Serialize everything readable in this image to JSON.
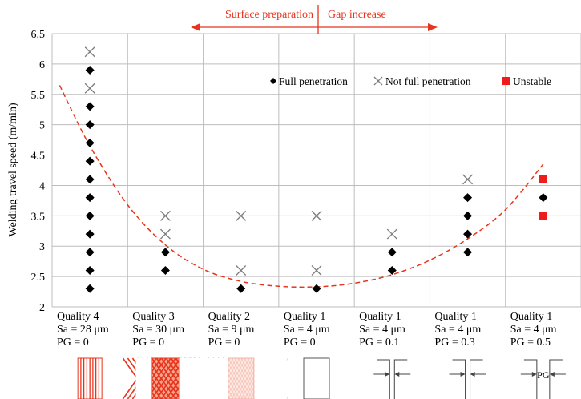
{
  "chart_data": {
    "type": "scatter",
    "ylabel": "Welding travel speed (m/min)",
    "ylim": [
      2,
      6.5
    ],
    "yticks": [
      "2",
      "2.5",
      "3",
      "3.5",
      "4",
      "4.5",
      "5",
      "5.5",
      "6",
      "6.5"
    ],
    "grid": true,
    "legend_position": "top-right",
    "categories": [
      {
        "line1": "Quality 4",
        "line2": "Sa = 28 μm",
        "line3": "PG = 0"
      },
      {
        "line1": "Quality 3",
        "line2": "Sa = 30 μm",
        "line3": "PG = 0"
      },
      {
        "line1": "Quality 2",
        "line2": "Sa = 9 μm",
        "line3": "PG = 0"
      },
      {
        "line1": "Quality 1",
        "line2": "Sa = 4 μm",
        "line3": "PG = 0"
      },
      {
        "line1": "Quality 1",
        "line2": "Sa = 4 μm",
        "line3": "PG = 0.1"
      },
      {
        "line1": "Quality 1",
        "line2": "Sa = 4 μm",
        "line3": "PG = 0.3"
      },
      {
        "line1": "Quality 1",
        "line2": "Sa = 4 μm",
        "line3": "PG = 0.5"
      }
    ],
    "series": [
      {
        "name": "Full penetration",
        "marker": "diamond",
        "color": "#000000",
        "points": [
          [
            0,
            5.9
          ],
          [
            0,
            5.3
          ],
          [
            0,
            5.0
          ],
          [
            0,
            4.7
          ],
          [
            0,
            4.4
          ],
          [
            0,
            4.1
          ],
          [
            0,
            3.8
          ],
          [
            0,
            3.5
          ],
          [
            0,
            3.2
          ],
          [
            0,
            2.9
          ],
          [
            0,
            2.6
          ],
          [
            0,
            2.3
          ],
          [
            1,
            2.9
          ],
          [
            1,
            2.6
          ],
          [
            2,
            2.3
          ],
          [
            3,
            2.3
          ],
          [
            4,
            2.9
          ],
          [
            4,
            2.6
          ],
          [
            5,
            3.8
          ],
          [
            5,
            3.5
          ],
          [
            5,
            3.2
          ],
          [
            5,
            2.9
          ],
          [
            6,
            3.8
          ]
        ]
      },
      {
        "name": "Not full penetration",
        "marker": "x",
        "color": "#7f7f7f",
        "points": [
          [
            0,
            6.2
          ],
          [
            0,
            5.6
          ],
          [
            1,
            3.5
          ],
          [
            1,
            3.2
          ],
          [
            2,
            3.5
          ],
          [
            2,
            2.6
          ],
          [
            3,
            3.5
          ],
          [
            3,
            2.6
          ],
          [
            4,
            3.2
          ],
          [
            5,
            4.1
          ]
        ]
      },
      {
        "name": "Unstable",
        "marker": "square",
        "color": "#ee1c1c",
        "points": [
          [
            6,
            4.1
          ],
          [
            6,
            3.5
          ]
        ]
      }
    ],
    "trend": {
      "color": "#e8341c",
      "points": [
        [
          -0.4,
          5.65
        ],
        [
          0,
          4.65
        ],
        [
          0.5,
          3.68
        ],
        [
          1,
          3.02
        ],
        [
          1.5,
          2.62
        ],
        [
          2,
          2.42
        ],
        [
          2.5,
          2.34
        ],
        [
          3,
          2.33
        ],
        [
          3.5,
          2.39
        ],
        [
          4,
          2.53
        ],
        [
          4.5,
          2.77
        ],
        [
          5,
          3.12
        ],
        [
          5.5,
          3.6
        ],
        [
          6,
          4.35
        ]
      ]
    },
    "annotations": {
      "left": "Surface preparation",
      "right": "Gap increase",
      "color": "#e8341c"
    },
    "sample_icons": [
      "vertical-stripes-icon",
      "crosshatch-pattern-icon",
      "fine-pattern-icon",
      "blank-plate-icon",
      "gap-arrows-icon",
      "gap-arrows-icon",
      "gap-arrows-pg-icon"
    ],
    "gap_label": "PG"
  }
}
